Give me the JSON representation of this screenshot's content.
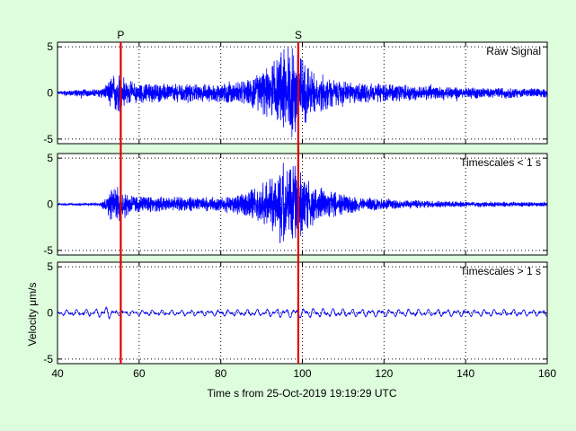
{
  "chart_data": {
    "type": "line",
    "xlabel": "Time s from 25-Oct-2019 19:19:29 UTC",
    "ylabel": "Velocity μm/s",
    "xlim": [
      40,
      160
    ],
    "xticks": [
      "40",
      "60",
      "80",
      "100",
      "120",
      "140",
      "160"
    ],
    "grid": true,
    "line_color": "#0000ff",
    "marker_color": "#e00000",
    "markers": [
      {
        "label": "P",
        "x": 55.5
      },
      {
        "label": "S",
        "x": 99
      }
    ],
    "panels": [
      {
        "name": "Raw Signal",
        "ylim": [
          -5.5,
          5.5
        ],
        "yticks": [
          "5",
          "0",
          "-5"
        ],
        "envelope": [
          [
            40,
            0.25
          ],
          [
            45,
            0.4
          ],
          [
            50,
            0.45
          ],
          [
            52,
            0.9
          ],
          [
            53,
            1.8
          ],
          [
            55,
            2.2
          ],
          [
            58,
            1.3
          ],
          [
            62,
            1.1
          ],
          [
            70,
            1.0
          ],
          [
            80,
            1.0
          ],
          [
            86,
            1.4
          ],
          [
            90,
            2.3
          ],
          [
            93,
            3.5
          ],
          [
            95,
            4.8
          ],
          [
            97,
            5.2
          ],
          [
            99,
            4.6
          ],
          [
            101,
            3.2
          ],
          [
            103,
            2.4
          ],
          [
            106,
            1.9
          ],
          [
            110,
            1.3
          ],
          [
            115,
            1.1
          ],
          [
            125,
            0.9
          ],
          [
            135,
            0.7
          ],
          [
            145,
            0.6
          ],
          [
            160,
            0.5
          ]
        ]
      },
      {
        "name": "Timescales < 1 s",
        "ylim": [
          -5.5,
          5.5
        ],
        "yticks": [
          "5",
          "0",
          "-5"
        ],
        "envelope": [
          [
            40,
            0.1
          ],
          [
            50,
            0.15
          ],
          [
            52,
            0.8
          ],
          [
            53,
            1.8
          ],
          [
            55,
            2.0
          ],
          [
            58,
            1.1
          ],
          [
            62,
            0.9
          ],
          [
            70,
            0.8
          ],
          [
            80,
            0.8
          ],
          [
            86,
            1.3
          ],
          [
            90,
            2.2
          ],
          [
            93,
            3.4
          ],
          [
            95,
            4.7
          ],
          [
            97,
            5.0
          ],
          [
            99,
            4.4
          ],
          [
            101,
            3.0
          ],
          [
            103,
            2.2
          ],
          [
            106,
            1.7
          ],
          [
            110,
            1.1
          ],
          [
            115,
            0.8
          ],
          [
            125,
            0.5
          ],
          [
            135,
            0.35
          ],
          [
            145,
            0.3
          ],
          [
            160,
            0.25
          ]
        ]
      },
      {
        "name": "Timescales > 1 s",
        "ylim": [
          -5.5,
          5.5
        ],
        "yticks": [
          "5",
          "0",
          "-5"
        ],
        "envelope": [
          [
            40,
            0.3
          ],
          [
            50,
            0.45
          ],
          [
            52,
            0.8
          ],
          [
            54,
            0.3
          ],
          [
            60,
            0.3
          ],
          [
            80,
            0.35
          ],
          [
            90,
            0.4
          ],
          [
            95,
            0.5
          ],
          [
            100,
            0.55
          ],
          [
            110,
            0.45
          ],
          [
            130,
            0.4
          ],
          [
            145,
            0.4
          ],
          [
            160,
            0.35
          ]
        ]
      }
    ]
  }
}
